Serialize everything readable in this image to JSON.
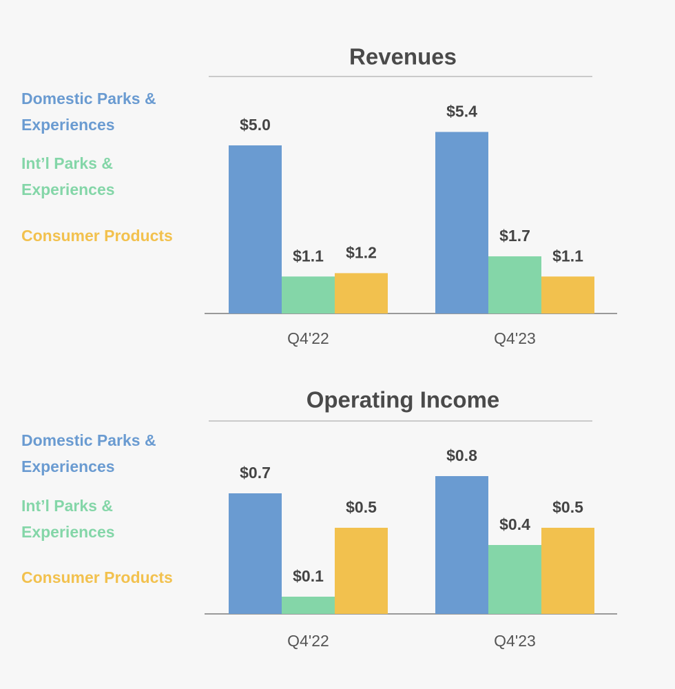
{
  "chart_data": [
    {
      "type": "bar",
      "title": "Revenues",
      "categories": [
        "Q4'22",
        "Q4'23"
      ],
      "series": [
        {
          "name": "Domestic Parks & Experiences",
          "color": "#6a9bd1",
          "values": [
            5.0,
            5.4
          ],
          "value_labels": [
            "$5.0",
            "$5.4"
          ]
        },
        {
          "name": "Int’l Parks & Experiences",
          "color": "#84d6a8",
          "values": [
            1.1,
            1.7
          ],
          "value_labels": [
            "$1.1",
            "$1.7"
          ]
        },
        {
          "name": "Consumer Products",
          "color": "#f2c14e",
          "values": [
            1.2,
            1.1
          ],
          "value_labels": [
            "$1.2",
            "$1.1"
          ]
        }
      ]
    },
    {
      "type": "bar",
      "title": "Operating Income",
      "categories": [
        "Q4'22",
        "Q4'23"
      ],
      "series": [
        {
          "name": "Domestic Parks & Experiences",
          "color": "#6a9bd1",
          "values": [
            0.7,
            0.8
          ],
          "value_labels": [
            "$0.7",
            "$0.8"
          ]
        },
        {
          "name": "Int’l Parks & Experiences",
          "color": "#84d6a8",
          "values": [
            0.1,
            0.4
          ],
          "value_labels": [
            "$0.1",
            "$0.4"
          ]
        },
        {
          "name": "Consumer Products",
          "color": "#f2c14e",
          "values": [
            0.5,
            0.5
          ],
          "value_labels": [
            "$0.5",
            "$0.5"
          ]
        }
      ]
    }
  ]
}
